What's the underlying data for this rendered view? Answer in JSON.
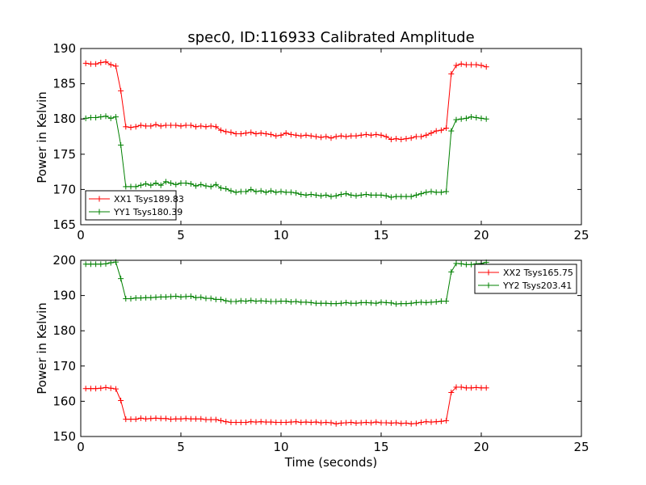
{
  "chart_data": [
    {
      "type": "line",
      "title": "spec0, ID:116933 Calibrated Amplitude",
      "xlabel": "",
      "ylabel": "Power in Kelvin",
      "xlim": [
        0,
        25
      ],
      "ylim": [
        165,
        190
      ],
      "xticks": [
        "0",
        "5",
        "10",
        "15",
        "20",
        "25"
      ],
      "yticks": [
        "165",
        "170",
        "175",
        "180",
        "185",
        "190"
      ],
      "grid": false,
      "legend_position": "lower-left",
      "series": [
        {
          "name": "XX1 Tsys189.83",
          "color": "#ff0000",
          "marker": "plus",
          "x": [
            0.25,
            0.5,
            0.75,
            1.0,
            1.25,
            1.5,
            1.75,
            2.0,
            2.25,
            2.5,
            2.75,
            3.0,
            3.25,
            3.5,
            3.75,
            4.0,
            4.25,
            4.5,
            4.75,
            5.0,
            5.25,
            5.5,
            5.75,
            6.0,
            6.25,
            6.5,
            6.75,
            7.0,
            7.25,
            7.5,
            7.75,
            8.0,
            8.25,
            8.5,
            8.75,
            9.0,
            9.25,
            9.5,
            9.75,
            10.0,
            10.25,
            10.5,
            10.75,
            11.0,
            11.25,
            11.5,
            11.75,
            12.0,
            12.25,
            12.5,
            12.75,
            13.0,
            13.25,
            13.5,
            13.75,
            14.0,
            14.25,
            14.5,
            14.75,
            15.0,
            15.25,
            15.5,
            15.75,
            16.0,
            16.25,
            16.5,
            16.75,
            17.0,
            17.25,
            17.5,
            17.75,
            18.0,
            18.25,
            18.5,
            18.75,
            19.0,
            19.25,
            19.5,
            19.75,
            20.0,
            20.25
          ],
          "values": [
            187.9,
            187.8,
            187.8,
            188.0,
            188.1,
            187.7,
            187.5,
            184.0,
            178.9,
            178.8,
            178.9,
            179.1,
            179.0,
            179.0,
            179.2,
            179.0,
            179.1,
            179.1,
            179.1,
            179.0,
            179.1,
            179.1,
            178.9,
            179.0,
            178.9,
            179.0,
            178.9,
            178.4,
            178.2,
            178.1,
            177.9,
            177.9,
            178.0,
            178.1,
            177.9,
            178.0,
            177.9,
            177.8,
            177.6,
            177.7,
            178.0,
            177.8,
            177.7,
            177.6,
            177.7,
            177.6,
            177.5,
            177.4,
            177.5,
            177.3,
            177.5,
            177.6,
            177.5,
            177.6,
            177.6,
            177.7,
            177.8,
            177.7,
            177.8,
            177.7,
            177.5,
            177.1,
            177.2,
            177.1,
            177.2,
            177.3,
            177.5,
            177.5,
            177.7,
            178.0,
            178.3,
            178.4,
            178.7,
            186.4,
            187.6,
            187.8,
            187.7,
            187.7,
            187.7,
            187.6,
            187.4
          ]
        },
        {
          "name": "YY1 Tsys180.39",
          "color": "#008000",
          "marker": "plus",
          "x": [
            0.25,
            0.5,
            0.75,
            1.0,
            1.25,
            1.5,
            1.75,
            2.0,
            2.25,
            2.5,
            2.75,
            3.0,
            3.25,
            3.5,
            3.75,
            4.0,
            4.25,
            4.5,
            4.75,
            5.0,
            5.25,
            5.5,
            5.75,
            6.0,
            6.25,
            6.5,
            6.75,
            7.0,
            7.25,
            7.5,
            7.75,
            8.0,
            8.25,
            8.5,
            8.75,
            9.0,
            9.25,
            9.5,
            9.75,
            10.0,
            10.25,
            10.5,
            10.75,
            11.0,
            11.25,
            11.5,
            11.75,
            12.0,
            12.25,
            12.5,
            12.75,
            13.0,
            13.25,
            13.5,
            13.75,
            14.0,
            14.25,
            14.5,
            14.75,
            15.0,
            15.25,
            15.5,
            15.75,
            16.0,
            16.25,
            16.5,
            16.75,
            17.0,
            17.25,
            17.5,
            17.75,
            18.0,
            18.25,
            18.5,
            18.75,
            19.0,
            19.25,
            19.5,
            19.75,
            20.0,
            20.25
          ],
          "values": [
            180.1,
            180.2,
            180.2,
            180.3,
            180.4,
            180.1,
            180.3,
            176.3,
            170.4,
            170.4,
            170.4,
            170.6,
            170.8,
            170.6,
            170.9,
            170.6,
            171.1,
            170.9,
            170.7,
            170.9,
            170.9,
            170.8,
            170.5,
            170.7,
            170.5,
            170.4,
            170.7,
            170.2,
            170.1,
            169.8,
            169.6,
            169.7,
            169.7,
            170.0,
            169.7,
            169.8,
            169.6,
            169.8,
            169.6,
            169.7,
            169.6,
            169.6,
            169.5,
            169.3,
            169.2,
            169.3,
            169.2,
            169.1,
            169.2,
            169.0,
            169.1,
            169.3,
            169.4,
            169.2,
            169.1,
            169.2,
            169.3,
            169.2,
            169.2,
            169.2,
            169.1,
            168.9,
            169.0,
            169.0,
            169.0,
            169.0,
            169.2,
            169.4,
            169.6,
            169.7,
            169.6,
            169.6,
            169.7,
            178.3,
            179.9,
            180.0,
            180.1,
            180.3,
            180.2,
            180.1,
            180.0
          ]
        }
      ]
    },
    {
      "type": "line",
      "title": "",
      "xlabel": "Time (seconds)",
      "ylabel": "Power in Kelvin",
      "xlim": [
        0,
        25
      ],
      "ylim": [
        150,
        200
      ],
      "xticks": [
        "0",
        "5",
        "10",
        "15",
        "20",
        "25"
      ],
      "yticks": [
        "150",
        "160",
        "170",
        "180",
        "190",
        "200"
      ],
      "grid": false,
      "legend_position": "top-right",
      "series": [
        {
          "name": "XX2 Tsys165.75",
          "color": "#ff0000",
          "marker": "plus",
          "x": [
            0.25,
            0.5,
            0.75,
            1.0,
            1.25,
            1.5,
            1.75,
            2.0,
            2.25,
            2.5,
            2.75,
            3.0,
            3.25,
            3.5,
            3.75,
            4.0,
            4.25,
            4.5,
            4.75,
            5.0,
            5.25,
            5.5,
            5.75,
            6.0,
            6.25,
            6.5,
            6.75,
            7.0,
            7.25,
            7.5,
            7.75,
            8.0,
            8.25,
            8.5,
            8.75,
            9.0,
            9.25,
            9.5,
            9.75,
            10.0,
            10.25,
            10.5,
            10.75,
            11.0,
            11.25,
            11.5,
            11.75,
            12.0,
            12.25,
            12.5,
            12.75,
            13.0,
            13.25,
            13.5,
            13.75,
            14.0,
            14.25,
            14.5,
            14.75,
            15.0,
            15.25,
            15.5,
            15.75,
            16.0,
            16.25,
            16.5,
            16.75,
            17.0,
            17.25,
            17.5,
            17.75,
            18.0,
            18.25,
            18.5,
            18.75,
            19.0,
            19.25,
            19.5,
            19.75,
            20.0,
            20.25
          ],
          "values": [
            163.6,
            163.6,
            163.6,
            163.7,
            163.9,
            163.7,
            163.5,
            160.2,
            154.9,
            154.9,
            154.9,
            155.2,
            155.0,
            155.1,
            155.2,
            155.1,
            155.1,
            154.9,
            155.0,
            155.0,
            155.1,
            155.0,
            155.0,
            155.0,
            154.8,
            154.8,
            154.8,
            154.5,
            154.2,
            154.0,
            154.0,
            154.0,
            154.0,
            154.2,
            154.1,
            154.2,
            154.1,
            154.1,
            154.0,
            154.0,
            154.0,
            154.1,
            154.2,
            154.0,
            154.1,
            154.0,
            154.1,
            153.9,
            154.0,
            153.9,
            153.6,
            153.8,
            153.9,
            154.0,
            153.8,
            153.9,
            154.0,
            153.9,
            154.1,
            153.9,
            153.9,
            153.8,
            153.9,
            153.7,
            153.8,
            153.6,
            153.7,
            154.0,
            154.2,
            154.1,
            154.2,
            154.3,
            154.5,
            162.5,
            164.0,
            164.0,
            163.8,
            163.8,
            163.9,
            163.8,
            163.8
          ]
        },
        {
          "name": "YY2 Tsys203.41",
          "color": "#008000",
          "marker": "plus",
          "x": [
            0.25,
            0.5,
            0.75,
            1.0,
            1.25,
            1.5,
            1.75,
            2.0,
            2.25,
            2.5,
            2.75,
            3.0,
            3.25,
            3.5,
            3.75,
            4.0,
            4.25,
            4.5,
            4.75,
            5.0,
            5.25,
            5.5,
            5.75,
            6.0,
            6.25,
            6.5,
            6.75,
            7.0,
            7.25,
            7.5,
            7.75,
            8.0,
            8.25,
            8.5,
            8.75,
            9.0,
            9.25,
            9.5,
            9.75,
            10.0,
            10.25,
            10.5,
            10.75,
            11.0,
            11.25,
            11.5,
            11.75,
            12.0,
            12.25,
            12.5,
            12.75,
            13.0,
            13.25,
            13.5,
            13.75,
            14.0,
            14.25,
            14.5,
            14.75,
            15.0,
            15.25,
            15.5,
            15.75,
            16.0,
            16.25,
            16.5,
            16.75,
            17.0,
            17.25,
            17.5,
            17.75,
            18.0,
            18.25,
            18.5,
            18.75,
            19.0,
            19.25,
            19.5,
            19.75,
            20.0,
            20.25
          ],
          "values": [
            198.9,
            198.9,
            198.9,
            198.9,
            199.0,
            199.3,
            199.5,
            194.8,
            189.1,
            189.1,
            189.3,
            189.3,
            189.4,
            189.4,
            189.5,
            189.6,
            189.6,
            189.7,
            189.8,
            189.6,
            189.7,
            189.8,
            189.4,
            189.5,
            189.2,
            189.2,
            188.9,
            188.9,
            188.5,
            188.3,
            188.3,
            188.5,
            188.4,
            188.6,
            188.4,
            188.5,
            188.4,
            188.3,
            188.3,
            188.4,
            188.4,
            188.2,
            188.3,
            188.1,
            188.1,
            188.0,
            187.8,
            187.8,
            187.8,
            187.7,
            187.7,
            187.8,
            188.0,
            187.8,
            187.8,
            188.0,
            188.0,
            187.9,
            187.8,
            188.1,
            188.0,
            187.9,
            187.6,
            187.7,
            187.7,
            187.8,
            188.0,
            188.1,
            188.0,
            188.1,
            188.2,
            188.4,
            188.4,
            196.7,
            199.1,
            199.0,
            198.8,
            198.8,
            199.0,
            199.1,
            199.4
          ]
        }
      ]
    }
  ]
}
